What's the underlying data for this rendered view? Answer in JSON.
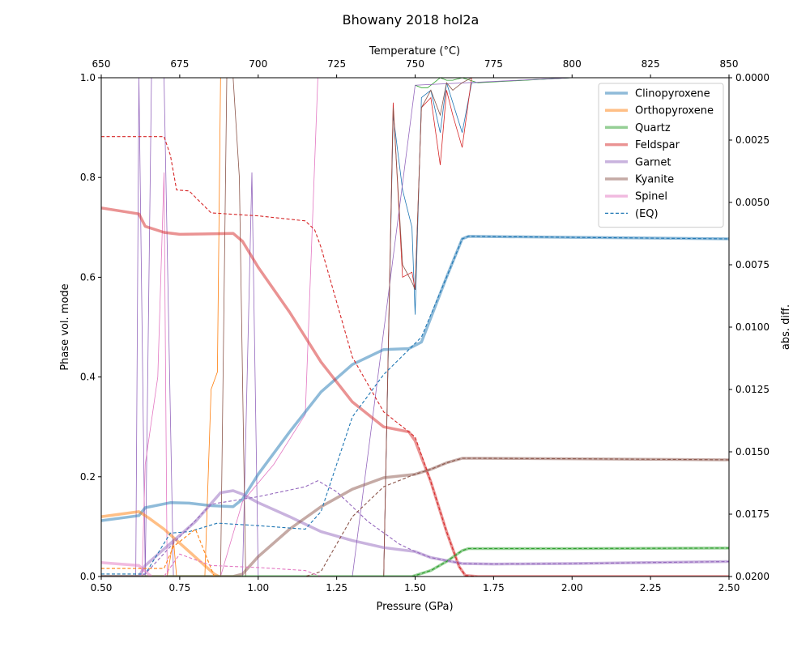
{
  "chart_data": {
    "type": "line",
    "title": "Bhowany 2018 hol2a",
    "xlabel": "Pressure (GPa)",
    "ylabel": "Phase vol. mode",
    "y2label": "abs. diff.",
    "top_xlabel": "Temperature (°C)",
    "xlim": [
      0.5,
      2.5
    ],
    "ylim": [
      0,
      1
    ],
    "y2lim": [
      0.02,
      0.0
    ],
    "top_xlim": [
      650,
      850
    ],
    "x_ticks": [
      "0.50",
      "0.75",
      "1.00",
      "1.25",
      "1.50",
      "1.75",
      "2.00",
      "2.25",
      "2.50"
    ],
    "y_ticks": [
      "0.0",
      "0.2",
      "0.4",
      "0.6",
      "0.8",
      "1.0"
    ],
    "y2_ticks": [
      "0.0000",
      "0.0025",
      "0.0050",
      "0.0075",
      "0.0100",
      "0.0125",
      "0.0150",
      "0.0175",
      "0.0200"
    ],
    "top_ticks": [
      "650",
      "675",
      "700",
      "725",
      "750",
      "775",
      "800",
      "825",
      "850"
    ],
    "legend_position": "top-right",
    "grid": false,
    "series": [
      {
        "name": "Clinopyroxene",
        "color": "#1f77b4",
        "x": [
          0.5,
          0.62,
          0.64,
          0.72,
          0.78,
          0.85,
          0.92,
          0.95,
          1.0,
          1.1,
          1.2,
          1.3,
          1.4,
          1.48,
          1.52,
          1.6,
          1.65,
          1.67,
          2.0,
          2.5
        ],
        "values": [
          0.112,
          0.122,
          0.138,
          0.148,
          0.147,
          0.142,
          0.14,
          0.155,
          0.205,
          0.29,
          0.37,
          0.425,
          0.455,
          0.457,
          0.47,
          0.6,
          0.677,
          0.682,
          0.68,
          0.677
        ]
      },
      {
        "name": "Orthopyroxene",
        "color": "#ff7f0e",
        "x": [
          0.5,
          0.62,
          0.65,
          0.7,
          0.78,
          0.86,
          0.875
        ],
        "values": [
          0.12,
          0.13,
          0.118,
          0.095,
          0.05,
          0.005,
          0.0
        ]
      },
      {
        "name": "Quartz",
        "color": "#2ca02c",
        "x": [
          0.5,
          1.49,
          1.55,
          1.6,
          1.65,
          1.67,
          2.0,
          2.5
        ],
        "values": [
          0.0,
          0.0,
          0.012,
          0.03,
          0.052,
          0.056,
          0.056,
          0.057
        ]
      },
      {
        "name": "Feldspar",
        "color": "#d62728",
        "x": [
          0.5,
          0.62,
          0.64,
          0.7,
          0.75,
          0.85,
          0.92,
          0.95,
          1.0,
          1.1,
          1.2,
          1.3,
          1.4,
          1.48,
          1.5,
          1.55,
          1.6,
          1.64,
          1.66,
          1.7,
          2.5
        ],
        "values": [
          0.739,
          0.727,
          0.702,
          0.69,
          0.686,
          0.687,
          0.688,
          0.672,
          0.62,
          0.53,
          0.43,
          0.35,
          0.3,
          0.29,
          0.272,
          0.19,
          0.09,
          0.02,
          0.002,
          0.0,
          0.0
        ]
      },
      {
        "name": "Garnet",
        "color": "#9467bd",
        "x": [
          0.5,
          0.62,
          0.64,
          0.7,
          0.8,
          0.88,
          0.92,
          0.95,
          1.0,
          1.1,
          1.2,
          1.3,
          1.4,
          1.5,
          1.55,
          1.65,
          1.75,
          2.0,
          2.5
        ],
        "values": [
          0.0,
          0.0,
          0.022,
          0.055,
          0.11,
          0.168,
          0.172,
          0.165,
          0.148,
          0.12,
          0.09,
          0.072,
          0.058,
          0.05,
          0.038,
          0.026,
          0.025,
          0.026,
          0.03
        ]
      },
      {
        "name": "Kyanite",
        "color": "#8c564b",
        "x": [
          0.5,
          0.92,
          0.95,
          1.0,
          1.1,
          1.2,
          1.3,
          1.4,
          1.5,
          1.55,
          1.6,
          1.65,
          1.7,
          2.0,
          2.5
        ],
        "values": [
          0.0,
          0.0,
          0.005,
          0.04,
          0.095,
          0.14,
          0.175,
          0.198,
          0.205,
          0.215,
          0.228,
          0.237,
          0.237,
          0.236,
          0.234
        ]
      },
      {
        "name": "Spinel",
        "color": "#e377c2",
        "x": [
          0.5,
          0.62,
          0.64,
          0.66
        ],
        "values": [
          0.028,
          0.022,
          0.01,
          0.0
        ]
      }
    ],
    "eq_legend": {
      "name": "(EQ)",
      "color": "#1f77b4"
    },
    "eq_series": [
      {
        "color": "#1f77b4",
        "x": [
          0.5,
          0.62,
          0.64,
          0.72,
          0.78,
          0.87,
          1.0,
          1.15,
          1.2,
          1.3,
          1.4,
          1.48,
          1.52,
          1.6,
          1.65,
          1.67,
          2.0,
          2.5
        ],
        "values": [
          0.005,
          0.005,
          0.005,
          0.087,
          0.09,
          0.107,
          0.102,
          0.095,
          0.13,
          0.32,
          0.405,
          0.455,
          0.48,
          0.6,
          0.677,
          0.682,
          0.68,
          0.677
        ]
      },
      {
        "color": "#ff7f0e",
        "x": [
          0.5,
          0.7,
          0.73,
          0.8,
          0.86
        ],
        "values": [
          0.016,
          0.016,
          0.06,
          0.095,
          0.0
        ]
      },
      {
        "color": "#2ca02c",
        "x": [
          0.5,
          1.49,
          1.55,
          1.6,
          1.65,
          1.67,
          2.0,
          2.5
        ],
        "values": [
          0.0,
          0.0,
          0.012,
          0.03,
          0.052,
          0.056,
          0.056,
          0.057
        ]
      },
      {
        "color": "#d62728",
        "x": [
          0.5,
          0.7,
          0.72,
          0.74,
          0.78,
          0.85,
          1.0,
          1.15,
          1.18,
          1.2,
          1.3,
          1.4,
          1.48,
          1.5,
          1.55,
          1.6,
          1.64,
          1.66,
          1.7,
          2.5
        ],
        "values": [
          0.882,
          0.882,
          0.845,
          0.775,
          0.773,
          0.729,
          0.723,
          0.713,
          0.695,
          0.66,
          0.44,
          0.33,
          0.29,
          0.28,
          0.19,
          0.09,
          0.02,
          0.002,
          0.0,
          0.0
        ]
      },
      {
        "color": "#9467bd",
        "x": [
          0.5,
          0.62,
          0.64,
          0.72,
          0.85,
          1.0,
          1.15,
          1.19,
          1.25,
          1.35,
          1.45,
          1.5,
          1.55,
          1.65,
          1.75,
          2.0,
          2.5
        ],
        "values": [
          0.0,
          0.0,
          0.005,
          0.06,
          0.145,
          0.16,
          0.18,
          0.192,
          0.17,
          0.11,
          0.065,
          0.05,
          0.038,
          0.026,
          0.025,
          0.026,
          0.03
        ]
      },
      {
        "color": "#8c564b",
        "x": [
          0.5,
          1.15,
          1.2,
          1.3,
          1.4,
          1.5,
          1.55,
          1.6,
          1.65,
          1.7,
          2.0,
          2.5
        ],
        "values": [
          0.0,
          0.0,
          0.01,
          0.12,
          0.18,
          0.205,
          0.215,
          0.228,
          0.237,
          0.237,
          0.236,
          0.234
        ]
      },
      {
        "color": "#e377c2",
        "x": [
          0.5,
          0.7,
          0.75,
          0.85,
          1.0,
          1.15,
          1.2
        ],
        "values": [
          0.0,
          0.0,
          0.045,
          0.022,
          0.018,
          0.012,
          0.0
        ]
      }
    ],
    "diff_series": [
      {
        "color": "#1f77b4",
        "x": [
          0.5,
          1.4,
          1.43,
          1.46,
          1.49,
          1.5,
          1.52,
          1.55,
          1.58,
          1.6,
          1.62,
          1.65,
          1.68,
          2.0,
          2.5
        ],
        "values": [
          0.02,
          0.02,
          0.0015,
          0.0045,
          0.006,
          0.0095,
          0.0008,
          0.0005,
          0.0022,
          0.0002,
          0.001,
          0.0022,
          0.0002,
          0.0,
          0.0
        ]
      },
      {
        "color": "#ff7f0e",
        "x": [
          0.5,
          0.71,
          0.73,
          0.74,
          0.75,
          0.83,
          0.85,
          0.87,
          0.88
        ],
        "values": [
          0.02,
          0.02,
          0.0185,
          0.02,
          0.02,
          0.02,
          0.0125,
          0.0118,
          0.0
        ]
      },
      {
        "color": "#2ca02c",
        "x": [
          1.5,
          1.52,
          1.54,
          1.56,
          1.58,
          1.6,
          1.62,
          1.65,
          1.7,
          2.0
        ],
        "values": [
          0.0003,
          0.0004,
          0.0004,
          0.0002,
          0.0,
          0.0001,
          0.0001,
          0.0,
          0.0002,
          0.0
        ]
      },
      {
        "color": "#d62728",
        "x": [
          0.5,
          1.4,
          1.43,
          1.46,
          1.49,
          1.5,
          1.52,
          1.55,
          1.58,
          1.6,
          1.62,
          1.65,
          1.68,
          2.0,
          2.5
        ],
        "values": [
          0.02,
          0.02,
          0.001,
          0.008,
          0.0078,
          0.0085,
          0.0012,
          0.0008,
          0.0035,
          0.0005,
          0.0015,
          0.0028,
          0.0,
          0.0,
          0.0
        ]
      },
      {
        "color": "#9467bd",
        "x": [
          0.5,
          0.61,
          0.62,
          0.64,
          0.66,
          0.7,
          0.73,
          0.8,
          0.87,
          0.95,
          0.98,
          1.0,
          1.05,
          1.1,
          1.3,
          1.5,
          2.0
        ],
        "values": [
          0.02,
          0.02,
          0.0,
          0.02,
          0.0,
          0.0,
          0.02,
          0.02,
          0.02,
          0.02,
          0.0038,
          0.02,
          0.02,
          0.02,
          0.02,
          0.0003,
          0.0
        ]
      },
      {
        "color": "#8c564b",
        "x": [
          0.5,
          0.88,
          0.9,
          0.92,
          0.94,
          0.96,
          1.4,
          1.43,
          1.46,
          1.49,
          1.5,
          1.52,
          1.55,
          1.58,
          1.6,
          1.62,
          1.65,
          1.68,
          2.0
        ],
        "values": [
          0.02,
          0.02,
          0.0,
          0.0,
          0.004,
          0.02,
          0.02,
          0.0012,
          0.0075,
          0.0082,
          0.0085,
          0.0012,
          0.0005,
          0.0015,
          0.0002,
          0.0005,
          0.0002,
          0.0,
          0.0
        ]
      },
      {
        "color": "#e377c2",
        "x": [
          0.5,
          0.63,
          0.64,
          0.68,
          0.7,
          0.71,
          0.8,
          0.88,
          0.95,
          1.05,
          1.15,
          1.19,
          1.25
        ],
        "values": [
          0.02,
          0.02,
          0.0155,
          0.012,
          0.0038,
          0.02,
          0.02,
          0.02,
          0.017,
          0.0155,
          0.0135,
          0.0,
          0.0
        ]
      }
    ]
  }
}
